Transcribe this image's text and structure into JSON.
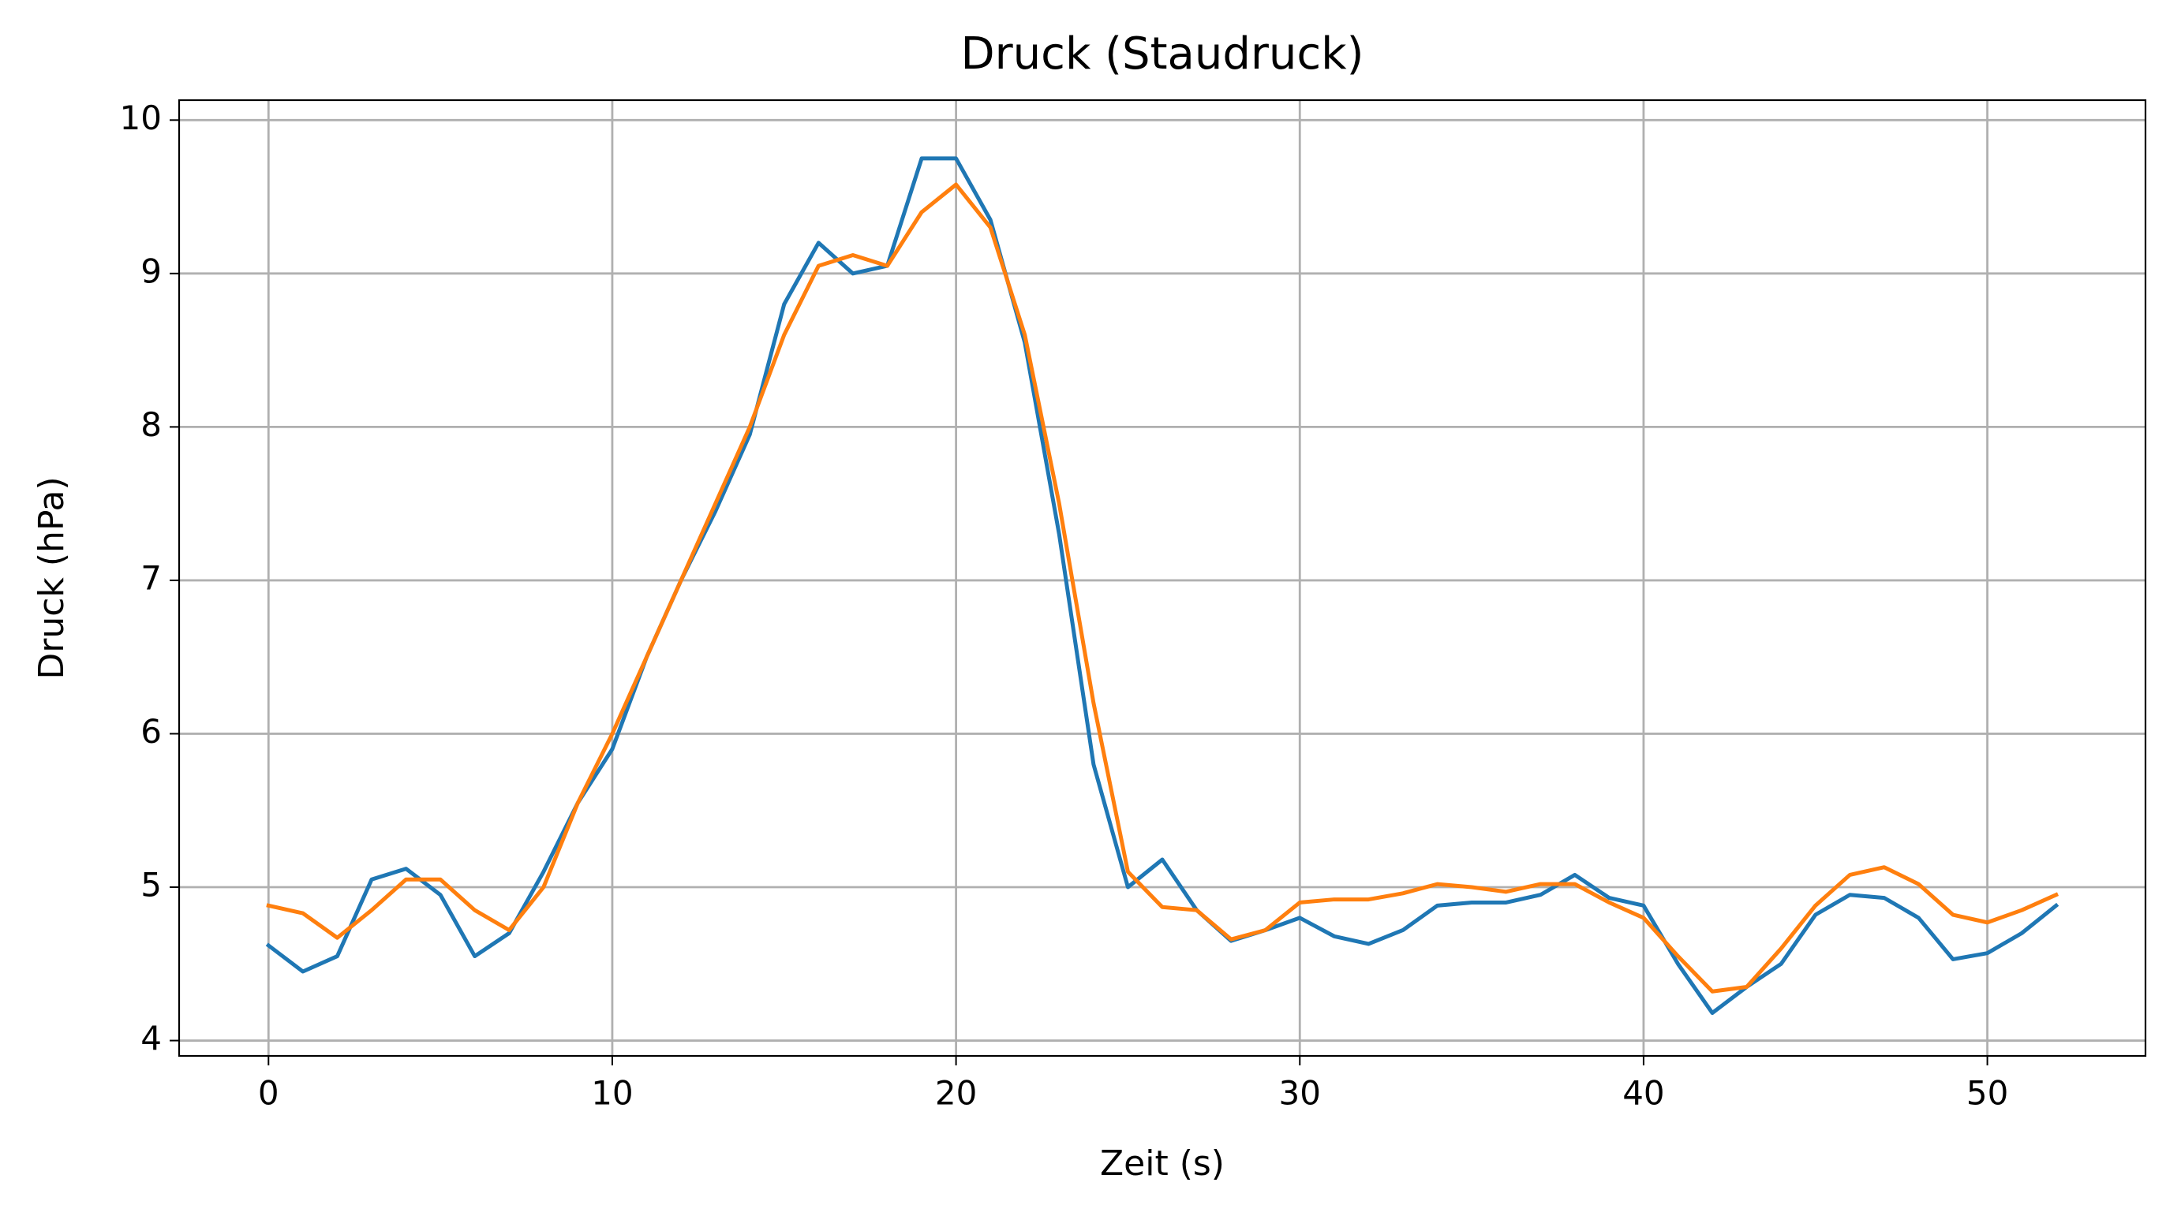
{
  "chart_data": {
    "type": "line",
    "title": "Druck (Staudruck)",
    "xlabel": "Zeit (s)",
    "ylabel": "Druck (hPa)",
    "x": [
      0,
      1,
      2,
      3,
      4,
      5,
      6,
      7,
      8,
      9,
      10,
      11,
      12,
      13,
      14,
      15,
      16,
      17,
      18,
      19,
      20,
      21,
      22,
      23,
      24,
      25,
      26,
      27,
      28,
      29,
      30,
      31,
      32,
      33,
      34,
      35,
      36,
      37,
      38,
      39,
      40,
      41,
      42,
      43,
      44,
      45,
      46,
      47,
      48,
      49,
      50,
      51,
      52
    ],
    "series": [
      {
        "color": "#1f77b4",
        "values": [
          4.62,
          4.45,
          4.55,
          5.05,
          5.12,
          4.95,
          4.55,
          4.7,
          5.1,
          5.55,
          5.9,
          6.5,
          7.0,
          7.45,
          7.95,
          8.8,
          9.2,
          9.0,
          9.05,
          9.75,
          9.75,
          9.35,
          8.55,
          7.3,
          5.8,
          5.0,
          5.18,
          4.85,
          4.65,
          4.72,
          4.8,
          4.68,
          4.63,
          4.72,
          4.88,
          4.9,
          4.9,
          4.95,
          5.08,
          4.93,
          4.88,
          4.5,
          4.18,
          4.35,
          4.5,
          4.82,
          4.95,
          4.93,
          4.8,
          4.53,
          4.57,
          4.7,
          4.88
        ]
      },
      {
        "color": "#ff7f0e",
        "values": [
          4.88,
          4.83,
          4.67,
          4.85,
          5.05,
          5.05,
          4.85,
          4.72,
          5.0,
          5.55,
          6.0,
          6.5,
          7.0,
          7.5,
          8.0,
          8.6,
          9.05,
          9.12,
          9.05,
          9.4,
          9.58,
          9.3,
          8.6,
          7.5,
          6.2,
          5.1,
          4.87,
          4.85,
          4.66,
          4.72,
          4.9,
          4.92,
          4.92,
          4.96,
          5.02,
          5.0,
          4.97,
          5.02,
          5.02,
          4.9,
          4.8,
          4.55,
          4.32,
          4.35,
          4.6,
          4.88,
          5.08,
          5.13,
          5.02,
          4.82,
          4.77,
          4.85,
          4.95
        ]
      }
    ],
    "xlim": [
      -2.6,
      54.6
    ],
    "xticks": [
      0,
      10,
      20,
      30,
      40,
      50
    ],
    "ylim": [
      3.9,
      10.13
    ],
    "yticks": [
      4,
      5,
      6,
      7,
      8,
      9,
      10
    ],
    "grid": true
  }
}
